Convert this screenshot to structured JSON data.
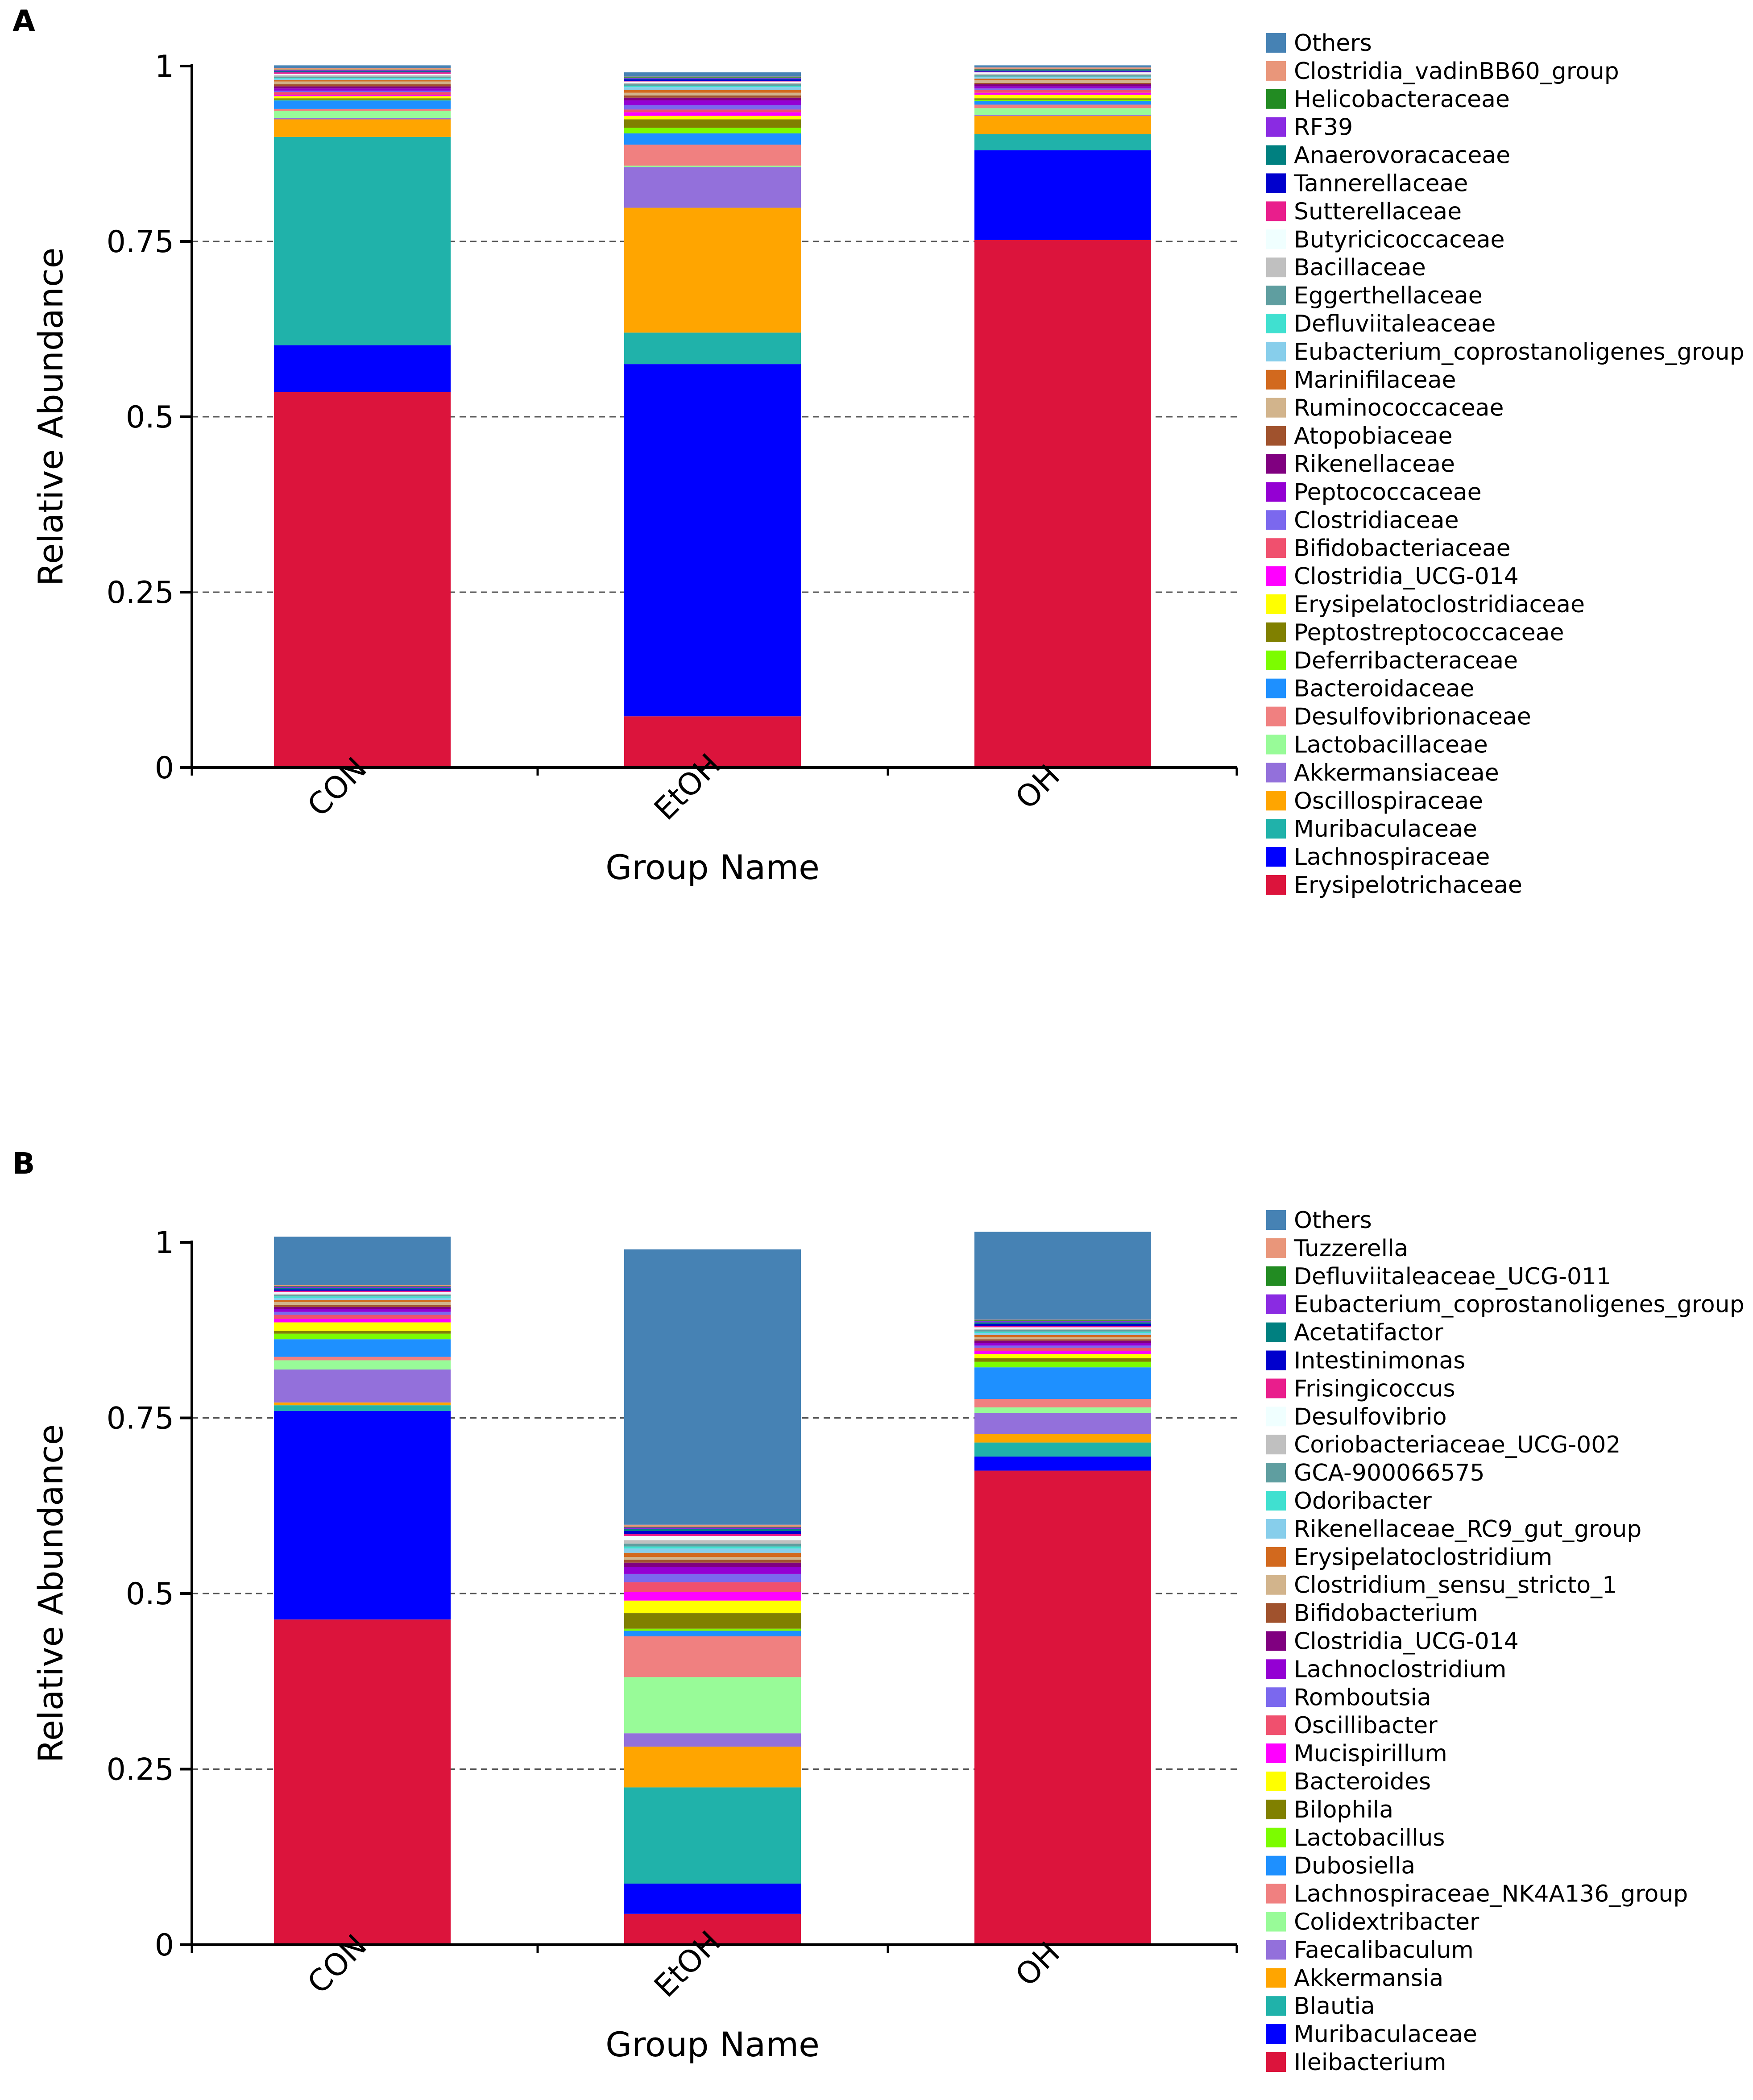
{
  "chart_data": [
    {
      "panel": "A",
      "type": "bar",
      "stacked": true,
      "title": "",
      "xlabel": "Group Name",
      "ylabel": "Relative Abundance",
      "ylim": [
        0,
        1
      ],
      "yticks": [
        0,
        0.25,
        0.5,
        0.75,
        1
      ],
      "ytick_labels": [
        "0",
        "0.25",
        "0.5",
        "0.75",
        "1"
      ],
      "grid": "dashed horizontal at 0.25, 0.5, 0.75",
      "legend_position": "right",
      "categories": [
        "CON",
        "EtOH",
        "OH"
      ],
      "series": [
        {
          "name": "Erysipelotrichaceae",
          "color": "#DC143C",
          "values": [
            0.535,
            0.073,
            0.752
          ]
        },
        {
          "name": "Lachnospiraceae",
          "color": "#0000FF",
          "values": [
            0.067,
            0.502,
            0.128
          ]
        },
        {
          "name": "Muribaculaceae",
          "color": "#20B2AA",
          "values": [
            0.297,
            0.045,
            0.023
          ]
        },
        {
          "name": "Oscillospiraceae",
          "color": "#FFA500",
          "values": [
            0.025,
            0.178,
            0.026
          ]
        },
        {
          "name": "Akkermansiaceae",
          "color": "#9370DB",
          "values": [
            0.002,
            0.058,
            0.001
          ]
        },
        {
          "name": "Lactobacillaceae",
          "color": "#98FB98",
          "values": [
            0.01,
            0.002,
            0.01
          ]
        },
        {
          "name": "Desulfovibrionaceae",
          "color": "#F08080",
          "values": [
            0.003,
            0.03,
            0.005
          ]
        },
        {
          "name": "Bacteroidaceae",
          "color": "#1E90FF",
          "values": [
            0.012,
            0.016,
            0.005
          ]
        },
        {
          "name": "Deferribacteraceae",
          "color": "#7CFC00",
          "values": [
            0.001,
            0.008,
            0.002
          ]
        },
        {
          "name": "Peptostreptococcaceae",
          "color": "#808000",
          "values": [
            0.002,
            0.012,
            0.002
          ]
        },
        {
          "name": "Erysipelatoclostridiaceae",
          "color": "#FFFF00",
          "values": [
            0.003,
            0.005,
            0.005
          ]
        },
        {
          "name": "Clostridia_UCG-014",
          "color": "#FF00FF",
          "values": [
            0.002,
            0.005,
            0.003
          ]
        },
        {
          "name": "Bifidobacteriaceae",
          "color": "#F0506E",
          "values": [
            0.004,
            0.004,
            0.004
          ]
        },
        {
          "name": "Clostridiaceae",
          "color": "#7B68EE",
          "values": [
            0.002,
            0.006,
            0.002
          ]
        },
        {
          "name": "Peptococcaceae",
          "color": "#9400D3",
          "values": [
            0.003,
            0.007,
            0.003
          ]
        },
        {
          "name": "Rikenellaceae",
          "color": "#800080",
          "values": [
            0.003,
            0.004,
            0.003
          ]
        },
        {
          "name": "Atopobiaceae",
          "color": "#A0522D",
          "values": [
            0.003,
            0.003,
            0.002
          ]
        },
        {
          "name": "Ruminococcaceae",
          "color": "#D2B48C",
          "values": [
            0.004,
            0.004,
            0.004
          ]
        },
        {
          "name": "Marinifilaceae",
          "color": "#D2691E",
          "values": [
            0.002,
            0.004,
            0.002
          ]
        },
        {
          "name": "Eubacterium_coprostanoligenes_group",
          "color": "#87CEEB",
          "values": [
            0.002,
            0.004,
            0.002
          ]
        },
        {
          "name": "Defluviitaleaceae",
          "color": "#40E0D0",
          "values": [
            0.001,
            0.002,
            0.001
          ]
        },
        {
          "name": "Eggerthellaceae",
          "color": "#5F9EA0",
          "values": [
            0.002,
            0.002,
            0.002
          ]
        },
        {
          "name": "Bacillaceae",
          "color": "#C0C0C0",
          "values": [
            0.002,
            0.002,
            0.002
          ]
        },
        {
          "name": "Butyricicoccaceae",
          "color": "#F0FFFF",
          "values": [
            0.002,
            0.002,
            0.002
          ]
        },
        {
          "name": "Sutterellaceae",
          "color": "#E91E8C",
          "values": [
            0.002,
            0.001,
            0.001
          ]
        },
        {
          "name": "Tannerellaceae",
          "color": "#0000CD",
          "values": [
            0.001,
            0.002,
            0.001
          ]
        },
        {
          "name": "Anaerovoracaceae",
          "color": "#008080",
          "values": [
            0.001,
            0.001,
            0.001
          ]
        },
        {
          "name": "RF39",
          "color": "#8A2BE2",
          "values": [
            0.001,
            0.001,
            0.001
          ]
        },
        {
          "name": "Helicobacteraceae",
          "color": "#228B22",
          "values": [
            0.001,
            0.001,
            0.001
          ]
        },
        {
          "name": "Clostridia_vadinBB60_group",
          "color": "#E9967A",
          "values": [
            0.002,
            0.001,
            0.002
          ]
        },
        {
          "name": "Others",
          "color": "#4682B4",
          "values": [
            0.004,
            0.006,
            0.003
          ]
        }
      ]
    },
    {
      "panel": "B",
      "type": "bar",
      "stacked": true,
      "title": "",
      "xlabel": "Group Name",
      "ylabel": "Relative Abundance",
      "ylim": [
        0,
        1
      ],
      "yticks": [
        0,
        0.25,
        0.5,
        0.75,
        1
      ],
      "ytick_labels": [
        "0",
        "0.25",
        "0.5",
        "0.75",
        "1"
      ],
      "grid": "dashed horizontal at 0.25, 0.5, 0.75",
      "legend_position": "right",
      "categories": [
        "CON",
        "EtOH",
        "OH"
      ],
      "series": [
        {
          "name": "Ileibacterium",
          "color": "#DC143C",
          "values": [
            0.463,
            0.044,
            0.675
          ]
        },
        {
          "name": "Muribaculaceae",
          "color": "#0000FF",
          "values": [
            0.297,
            0.043,
            0.02
          ]
        },
        {
          "name": "Blautia",
          "color": "#20B2AA",
          "values": [
            0.008,
            0.137,
            0.02
          ]
        },
        {
          "name": "Akkermansia",
          "color": "#FFA500",
          "values": [
            0.004,
            0.058,
            0.012
          ]
        },
        {
          "name": "Faecalibaculum",
          "color": "#9370DB",
          "values": [
            0.047,
            0.019,
            0.03
          ]
        },
        {
          "name": "Colidextribacter",
          "color": "#98FB98",
          "values": [
            0.013,
            0.08,
            0.008
          ]
        },
        {
          "name": "Lachnospiraceae_NK4A136_group",
          "color": "#F08080",
          "values": [
            0.005,
            0.058,
            0.012
          ]
        },
        {
          "name": "Dubosiella",
          "color": "#1E90FF",
          "values": [
            0.025,
            0.008,
            0.045
          ]
        },
        {
          "name": "Lactobacillus",
          "color": "#7CFC00",
          "values": [
            0.008,
            0.003,
            0.008
          ]
        },
        {
          "name": "Bilophila",
          "color": "#808000",
          "values": [
            0.004,
            0.022,
            0.005
          ]
        },
        {
          "name": "Bacteroides",
          "color": "#FFFF00",
          "values": [
            0.012,
            0.018,
            0.006
          ]
        },
        {
          "name": "Mucispirillum",
          "color": "#FF00FF",
          "values": [
            0.005,
            0.012,
            0.004
          ]
        },
        {
          "name": "Oscillibacter",
          "color": "#F0506E",
          "values": [
            0.006,
            0.014,
            0.005
          ]
        },
        {
          "name": "Romboutsia",
          "color": "#7B68EE",
          "values": [
            0.004,
            0.012,
            0.003
          ]
        },
        {
          "name": "Lachnoclostridium",
          "color": "#9400D3",
          "values": [
            0.004,
            0.01,
            0.004
          ]
        },
        {
          "name": "Clostridia_UCG-014",
          "color": "#800080",
          "values": [
            0.003,
            0.006,
            0.003
          ]
        },
        {
          "name": "Bifidobacterium",
          "color": "#A0522D",
          "values": [
            0.003,
            0.004,
            0.002
          ]
        },
        {
          "name": "Clostridium_sensu_stricto_1",
          "color": "#D2B48C",
          "values": [
            0.004,
            0.004,
            0.003
          ]
        },
        {
          "name": "Erysipelatoclostridium",
          "color": "#D2691E",
          "values": [
            0.003,
            0.006,
            0.003
          ]
        },
        {
          "name": "Rikenellaceae_RC9_gut_group",
          "color": "#87CEEB",
          "values": [
            0.003,
            0.006,
            0.003
          ]
        },
        {
          "name": "Odoribacter",
          "color": "#40E0D0",
          "values": [
            0.002,
            0.003,
            0.002
          ]
        },
        {
          "name": "GCA-900066575",
          "color": "#5F9EA0",
          "values": [
            0.002,
            0.004,
            0.002
          ]
        },
        {
          "name": "Coriobacteriaceae_UCG-002",
          "color": "#C0C0C0",
          "values": [
            0.002,
            0.005,
            0.002
          ]
        },
        {
          "name": "Desulfovibrio",
          "color": "#F0FFFF",
          "values": [
            0.002,
            0.006,
            0.002
          ]
        },
        {
          "name": "Frisingicoccus",
          "color": "#E91E8C",
          "values": [
            0.002,
            0.003,
            0.002
          ]
        },
        {
          "name": "Intestinimonas",
          "color": "#0000CD",
          "values": [
            0.002,
            0.004,
            0.003
          ]
        },
        {
          "name": "Acetatifactor",
          "color": "#008080",
          "values": [
            0.002,
            0.003,
            0.002
          ]
        },
        {
          "name": "Eubacterium_coprostanoligenes_group",
          "color": "#8A2BE2",
          "values": [
            0.002,
            0.002,
            0.002
          ]
        },
        {
          "name": "Defluviitaleaceae_UCG-011",
          "color": "#228B22",
          "values": [
            0.001,
            0.001,
            0.001
          ]
        },
        {
          "name": "Tuzzerella",
          "color": "#E9967A",
          "values": [
            0.001,
            0.003,
            0.001
          ]
        },
        {
          "name": "Others",
          "color": "#4682B4",
          "values": [
            0.069,
            0.392,
            0.125
          ]
        }
      ]
    }
  ]
}
